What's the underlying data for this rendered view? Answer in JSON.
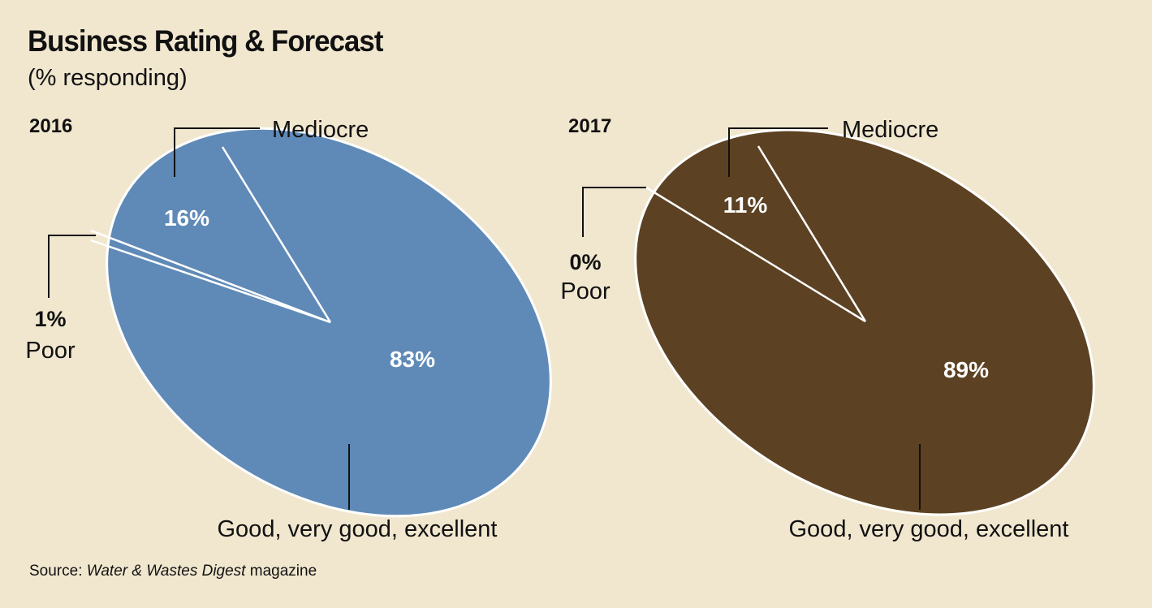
{
  "title": "Business Rating & Forecast",
  "subtitle": "(% responding)",
  "source": {
    "prefix": "Source:",
    "publication": "Water & Wastes Digest",
    "suffix": "magazine"
  },
  "colors": {
    "background": "#f1e7cf",
    "chart_2016": "#5f8ab7",
    "chart_2017": "#5c4223",
    "divider": "#ffffff"
  },
  "chart_data": [
    {
      "type": "pie",
      "title": "2016",
      "slices": [
        {
          "label": "Mediocre",
          "value": 16,
          "value_label": "16%"
        },
        {
          "label": "Poor",
          "value": 1,
          "value_label": "1%"
        },
        {
          "label": "Good, very good, excellent",
          "value": 83,
          "value_label": "83%"
        }
      ]
    },
    {
      "type": "pie",
      "title": "2017",
      "slices": [
        {
          "label": "Mediocre",
          "value": 11,
          "value_label": "11%"
        },
        {
          "label": "Poor",
          "value": 0,
          "value_label": "0%"
        },
        {
          "label": "Good, very good, excellent",
          "value": 89,
          "value_label": "89%"
        }
      ]
    }
  ]
}
